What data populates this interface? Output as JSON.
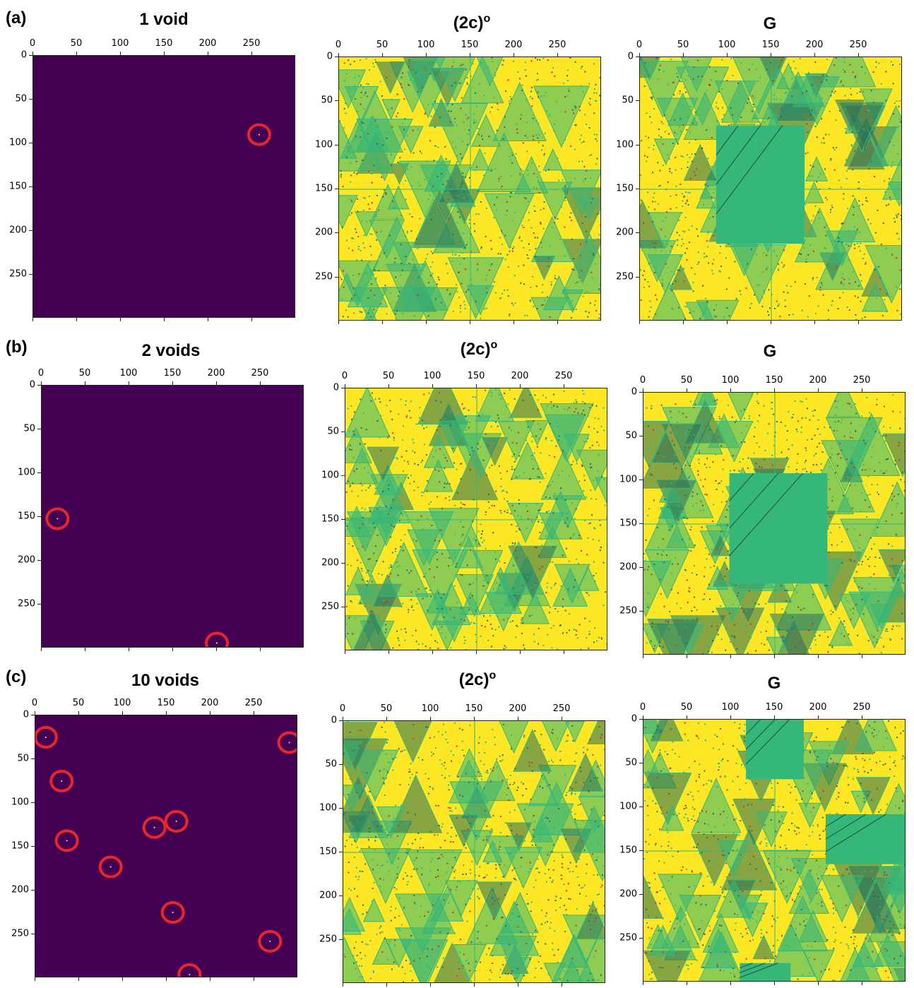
{
  "colors": {
    "void_bg": "#440154",
    "void_marker": "#e8262a",
    "pattern_yellow": "#fde725",
    "pattern_green": "#35b779",
    "pattern_dark": "#2a6f5a",
    "pattern_red": "#c0392b"
  },
  "axis": {
    "x_ticks": [
      "0",
      "50",
      "100",
      "150",
      "200",
      "250"
    ],
    "y_ticks": [
      "0",
      "50",
      "100",
      "150",
      "200",
      "250"
    ],
    "range": [
      0,
      300
    ]
  },
  "rows": [
    {
      "label": "(a)",
      "void_title": "1 void",
      "sandpile_title": "(2c)",
      "sandpile_sup": "o",
      "green_title": "G",
      "voids": [
        [
          258,
          90
        ]
      ],
      "green_block": [
        [
          87,
          78,
          188,
          213
        ]
      ]
    },
    {
      "label": "(b)",
      "void_title": "2 voids",
      "sandpile_title": "(2c)",
      "sandpile_sup": "o",
      "green_title": "G",
      "voids": [
        [
          18,
          152
        ],
        [
          200,
          294
        ]
      ],
      "green_block": [
        [
          98,
          92,
          210,
          218
        ]
      ]
    },
    {
      "label": "(c)",
      "void_title": "10 voids",
      "sandpile_title": "(2c)",
      "sandpile_sup": "o",
      "green_title": "G",
      "voids": [
        [
          12,
          25
        ],
        [
          290,
          31
        ],
        [
          30,
          75
        ],
        [
          36,
          143
        ],
        [
          136,
          128
        ],
        [
          161,
          121
        ],
        [
          86,
          173
        ],
        [
          157,
          225
        ],
        [
          268,
          258
        ],
        [
          176,
          296
        ]
      ],
      "green_block": [
        [
          117,
          0,
          183,
          68
        ],
        [
          208,
          108,
          300,
          165
        ],
        [
          110,
          278,
          168,
          300
        ]
      ]
    }
  ]
}
